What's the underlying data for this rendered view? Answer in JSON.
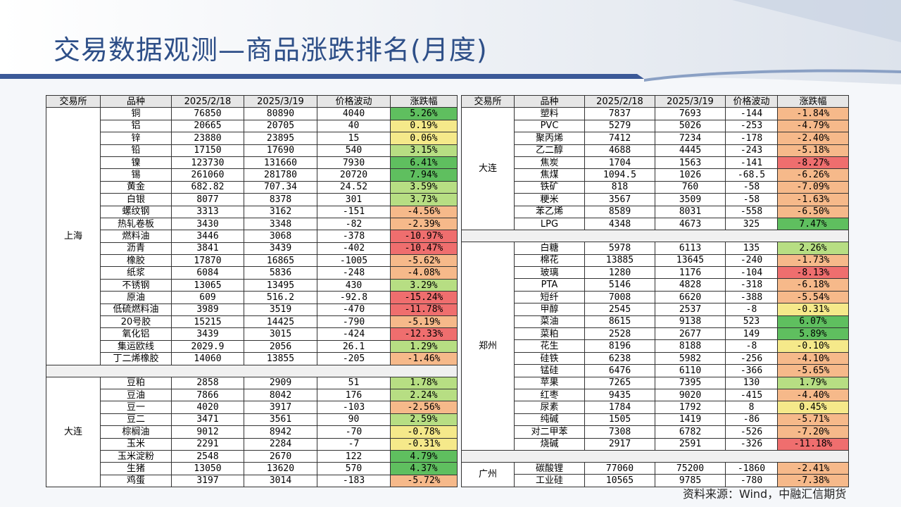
{
  "title": "交易数据观测—商品涨跌排名(月度)",
  "source": "资料来源：Wind，中融汇信期货",
  "headers": [
    "交易所",
    "品种",
    "2025/2/18",
    "2025/3/19",
    "价格波动",
    "涨跌幅"
  ],
  "colors": {
    "strong_up": "#5fbf5f",
    "up": "#b7de83",
    "flat": "#f5e98a",
    "down": "#f6b98a",
    "strong_down": "#ef6e6e"
  },
  "left_groups": [
    {
      "exchange": "上海",
      "rows": [
        [
          "铜",
          "76850",
          "80890",
          "4040",
          "5.26%"
        ],
        [
          "铝",
          "20665",
          "20705",
          "40",
          "0.19%"
        ],
        [
          "锌",
          "23880",
          "23895",
          "15",
          "0.06%"
        ],
        [
          "铅",
          "17150",
          "17690",
          "540",
          "3.15%"
        ],
        [
          "镍",
          "123730",
          "131660",
          "7930",
          "6.41%"
        ],
        [
          "锡",
          "261060",
          "281780",
          "20720",
          "7.94%"
        ],
        [
          "黄金",
          "682.82",
          "707.34",
          "24.52",
          "3.59%"
        ],
        [
          "白银",
          "8077",
          "8378",
          "301",
          "3.73%"
        ],
        [
          "螺纹钢",
          "3313",
          "3162",
          "-151",
          "-4.56%"
        ],
        [
          "热轧卷板",
          "3430",
          "3348",
          "-82",
          "-2.39%"
        ],
        [
          "燃料油",
          "3446",
          "3068",
          "-378",
          "-10.97%"
        ],
        [
          "沥青",
          "3841",
          "3439",
          "-402",
          "-10.47%"
        ],
        [
          "橡胶",
          "17870",
          "16865",
          "-1005",
          "-5.62%"
        ],
        [
          "纸浆",
          "6084",
          "5836",
          "-248",
          "-4.08%"
        ],
        [
          "不锈钢",
          "13065",
          "13495",
          "430",
          "3.29%"
        ],
        [
          "原油",
          "609",
          "516.2",
          "-92.8",
          "-15.24%"
        ],
        [
          "低硫燃料油",
          "3989",
          "3519",
          "-470",
          "-11.78%"
        ],
        [
          "20号胶",
          "15215",
          "14425",
          "-790",
          "-5.19%"
        ],
        [
          "氧化铝",
          "3439",
          "3015",
          "-424",
          "-12.33%"
        ],
        [
          "集运欧线",
          "2029.9",
          "2056",
          "26.1",
          "1.29%"
        ],
        [
          "丁二烯橡胶",
          "14060",
          "13855",
          "-205",
          "-1.46%"
        ]
      ]
    },
    {
      "exchange": "大连",
      "rows": [
        [
          "豆粕",
          "2858",
          "2909",
          "51",
          "1.78%"
        ],
        [
          "豆油",
          "7866",
          "8042",
          "176",
          "2.24%"
        ],
        [
          "豆一",
          "4020",
          "3917",
          "-103",
          "-2.56%"
        ],
        [
          "豆二",
          "3471",
          "3561",
          "90",
          "2.59%"
        ],
        [
          "棕榈油",
          "9012",
          "8942",
          "-70",
          "-0.78%"
        ],
        [
          "玉米",
          "2291",
          "2284",
          "-7",
          "-0.31%"
        ],
        [
          "玉米淀粉",
          "2548",
          "2670",
          "122",
          "4.79%"
        ],
        [
          "生猪",
          "13050",
          "13620",
          "570",
          "4.37%"
        ],
        [
          "鸡蛋",
          "3197",
          "3014",
          "-183",
          "-5.72%"
        ]
      ]
    }
  ],
  "right_groups": [
    {
      "exchange": "大连",
      "rows": [
        [
          "塑料",
          "7837",
          "7693",
          "-144",
          "-1.84%"
        ],
        [
          "PVC",
          "5279",
          "5026",
          "-253",
          "-4.79%"
        ],
        [
          "聚丙烯",
          "7412",
          "7234",
          "-178",
          "-2.40%"
        ],
        [
          "乙二醇",
          "4688",
          "4445",
          "-243",
          "-5.18%"
        ],
        [
          "焦炭",
          "1704",
          "1563",
          "-141",
          "-8.27%"
        ],
        [
          "焦煤",
          "1094.5",
          "1026",
          "-68.5",
          "-6.26%"
        ],
        [
          "铁矿",
          "818",
          "760",
          "-58",
          "-7.09%"
        ],
        [
          "粳米",
          "3567",
          "3509",
          "-58",
          "-1.63%"
        ],
        [
          "苯乙烯",
          "8589",
          "8031",
          "-558",
          "-6.50%"
        ],
        [
          "LPG",
          "4348",
          "4673",
          "325",
          "7.47%"
        ]
      ]
    },
    {
      "exchange": "郑州",
      "rows": [
        [
          "白糖",
          "5978",
          "6113",
          "135",
          "2.26%"
        ],
        [
          "棉花",
          "13885",
          "13645",
          "-240",
          "-1.73%"
        ],
        [
          "玻璃",
          "1280",
          "1176",
          "-104",
          "-8.13%"
        ],
        [
          "PTA",
          "5146",
          "4828",
          "-318",
          "-6.18%"
        ],
        [
          "短纤",
          "7008",
          "6620",
          "-388",
          "-5.54%"
        ],
        [
          "甲醇",
          "2545",
          "2537",
          "-8",
          "-0.31%"
        ],
        [
          "菜油",
          "8615",
          "9138",
          "523",
          "6.07%"
        ],
        [
          "菜粕",
          "2528",
          "2677",
          "149",
          "5.89%"
        ],
        [
          "花生",
          "8196",
          "8188",
          "-8",
          "-0.10%"
        ],
        [
          "硅铁",
          "6238",
          "5982",
          "-256",
          "-4.10%"
        ],
        [
          "锰硅",
          "6476",
          "6110",
          "-366",
          "-5.65%"
        ],
        [
          "苹果",
          "7265",
          "7395",
          "130",
          "1.79%"
        ],
        [
          "红枣",
          "9435",
          "9020",
          "-415",
          "-4.40%"
        ],
        [
          "尿素",
          "1784",
          "1792",
          "8",
          "0.45%"
        ],
        [
          "纯碱",
          "1505",
          "1419",
          "-86",
          "-5.71%"
        ],
        [
          "对二甲苯",
          "7308",
          "6782",
          "-526",
          "-7.20%"
        ],
        [
          "烧碱",
          "2917",
          "2591",
          "-326",
          "-11.18%"
        ]
      ]
    },
    {
      "exchange": "广州",
      "rows": [
        [
          "碳酸锂",
          "77060",
          "75200",
          "-1860",
          "-2.41%"
        ],
        [
          "工业硅",
          "10565",
          "9785",
          "-780",
          "-7.38%"
        ]
      ]
    }
  ]
}
